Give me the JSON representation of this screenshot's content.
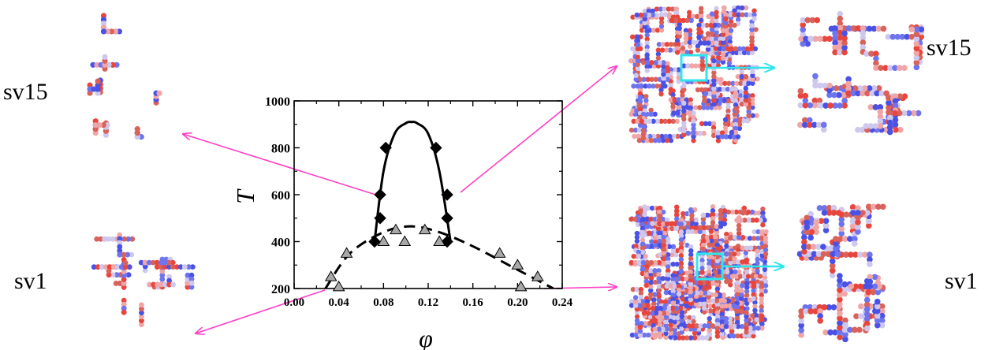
{
  "labels": {
    "left_top": "sv15",
    "left_bottom": "sv1",
    "right_top": "sv15",
    "right_bottom": "sv1"
  },
  "colors": {
    "arrow_pink": "#ff3fc8",
    "arrow_cyan": "#2fe6ec",
    "bead_red": "#e8463c",
    "bead_blue": "#4a52e6",
    "bead_pale": "#cfc8ee",
    "bead_pink": "#f0a6a6",
    "triangle_fill": "#a8a8a8"
  },
  "chart_data": {
    "type": "scatter",
    "title": "",
    "xlabel": "φ",
    "ylabel": "T",
    "xlim": [
      0.0,
      0.24
    ],
    "ylim": [
      200,
      1000
    ],
    "xticks": [
      "0.00",
      "0.04",
      "0.08",
      "0.12",
      "0.16",
      "0.20",
      "0.24"
    ],
    "yticks": [
      "200",
      "400",
      "600",
      "800",
      "1000"
    ],
    "grid": false,
    "legend": "none",
    "series": [
      {
        "marker": "diamond",
        "fill": "#000000",
        "x": [
          0.072,
          0.077,
          0.077,
          0.082,
          0.127,
          0.137,
          0.137,
          0.137
        ],
        "y": [
          400,
          500,
          600,
          800,
          800,
          600,
          500,
          400
        ]
      },
      {
        "marker": "triangle",
        "fill": "#a8a8a8",
        "x": [
          0.033,
          0.04,
          0.047,
          0.08,
          0.091,
          0.099,
          0.117,
          0.13,
          0.184,
          0.2,
          0.203,
          0.218
        ],
        "y": [
          250,
          207,
          350,
          400,
          450,
          400,
          450,
          400,
          350,
          300,
          207,
          250
        ]
      },
      {
        "line": "solid",
        "x": [
          0.072,
          0.08,
          0.09,
          0.1,
          0.105,
          0.11,
          0.12,
          0.13,
          0.14
        ],
        "y": [
          400,
          700,
          860,
          905,
          910,
          905,
          860,
          700,
          400
        ]
      },
      {
        "line": "dashed",
        "x": [
          0.028,
          0.05,
          0.08,
          0.105,
          0.13,
          0.16,
          0.2,
          0.232
        ],
        "y": [
          200,
          350,
          440,
          465,
          440,
          380,
          280,
          200
        ]
      }
    ]
  }
}
